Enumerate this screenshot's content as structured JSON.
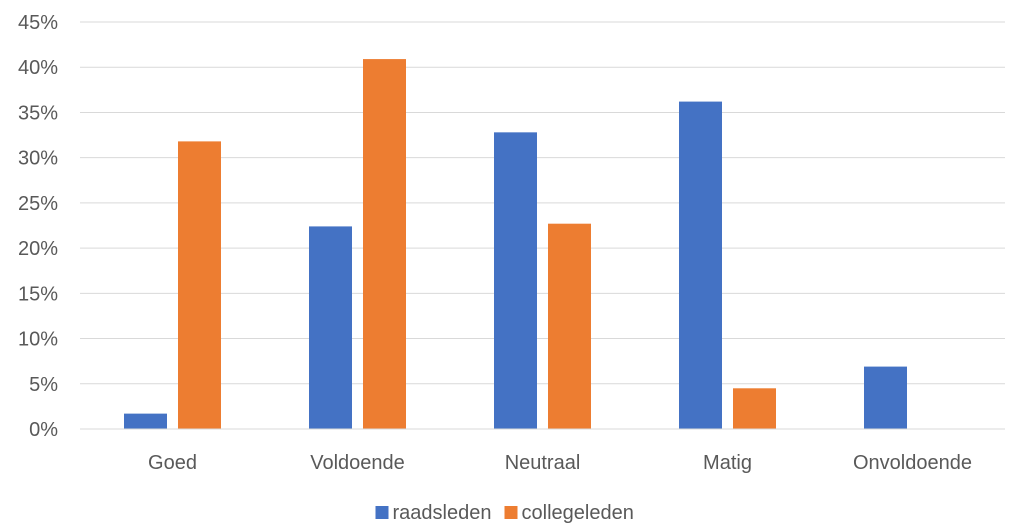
{
  "chart_data": {
    "type": "bar",
    "title": "",
    "xlabel": "",
    "ylabel": "",
    "categories": [
      "Goed",
      "Voldoende",
      "Neutraal",
      "Matig",
      "Onvoldoende"
    ],
    "series": [
      {
        "name": "raadsleden",
        "color": "#4472C4",
        "values": [
          1.7,
          22.4,
          32.8,
          36.2,
          6.9
        ]
      },
      {
        "name": "collegeleden",
        "color": "#ED7D31",
        "values": [
          31.8,
          40.9,
          22.7,
          4.5,
          0
        ]
      }
    ],
    "ylim": [
      0,
      45
    ],
    "yticks": [
      "0%",
      "5%",
      "10%",
      "15%",
      "20%",
      "25%",
      "30%",
      "35%",
      "40%",
      "45%"
    ],
    "grid": true,
    "legend_position": "bottom"
  }
}
